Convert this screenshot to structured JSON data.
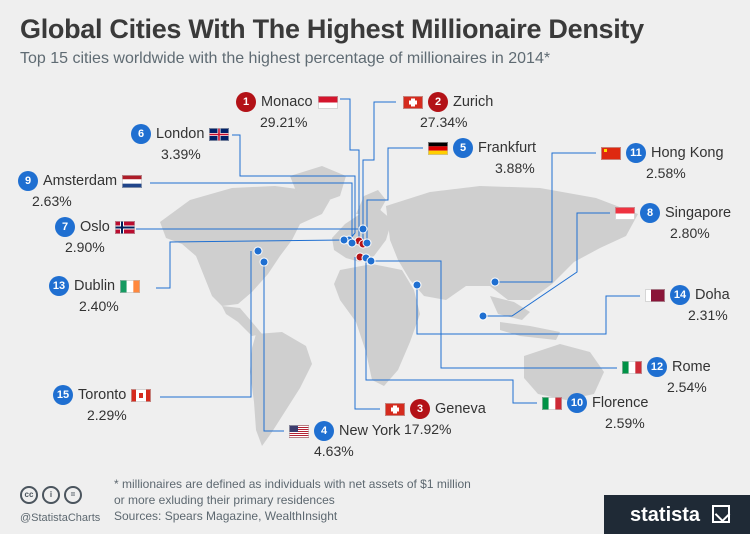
{
  "title": "Global Cities With The Highest Millionaire Density",
  "subtitle": "Top 15 cities worldwide with the highest percentage of millionaires in 2014*",
  "footer": {
    "note_line1": "* millionaires are defined as individuals with net assets of $1 million",
    "note_line2": "or more exluding their primary residences",
    "sources": "Sources: Spears Magazine, WealthInsight",
    "handle": "@StatistaCharts",
    "brand": "statista"
  },
  "icons": [
    "cc-icon",
    "by-icon",
    "nd-icon",
    "statista-logo-icon"
  ],
  "colors": {
    "top3": "#b31217",
    "others": "#1f6fd1",
    "leader": "#1f6fd1",
    "map": "#cfcfcf",
    "background": "#efefef"
  },
  "chart_data": {
    "type": "table",
    "title": "Global Cities With The Highest Millionaire Density",
    "subtitle": "Top 15 cities worldwide with the highest percentage of millionaires in 2014*",
    "unit": "%",
    "cities": [
      {
        "rank": 1,
        "rank_label": "1",
        "name": "Monaco",
        "value": 29.21,
        "label": "29.21%",
        "flag": "monaco"
      },
      {
        "rank": 2,
        "rank_label": "2",
        "name": "Zurich",
        "value": 27.34,
        "label": "27.34%",
        "flag": "switzerland"
      },
      {
        "rank": 3,
        "rank_label": "3",
        "name": "Geneva",
        "value": 17.92,
        "label": "17.92%",
        "flag": "switzerland"
      },
      {
        "rank": 4,
        "rank_label": "4",
        "name": "New York",
        "value": 4.63,
        "label": "4.63%",
        "flag": "usa"
      },
      {
        "rank": 5,
        "rank_label": "5",
        "name": "Frankfurt",
        "value": 3.88,
        "label": "3.88%",
        "flag": "germany"
      },
      {
        "rank": 6,
        "rank_label": "6",
        "name": "London",
        "value": 3.39,
        "label": "3.39%",
        "flag": "uk"
      },
      {
        "rank": 7,
        "rank_label": "7",
        "name": "Oslo",
        "value": 2.9,
        "label": "2.90%",
        "flag": "norway"
      },
      {
        "rank": 8,
        "rank_label": "8",
        "name": "Singapore",
        "value": 2.8,
        "label": "2.80%",
        "flag": "singapore"
      },
      {
        "rank": 9,
        "rank_label": "9",
        "name": "Amsterdam",
        "value": 2.63,
        "label": "2.63%",
        "flag": "netherlands"
      },
      {
        "rank": 10,
        "rank_label": "10",
        "name": "Florence",
        "value": 2.59,
        "label": "2.59%",
        "flag": "italy"
      },
      {
        "rank": 11,
        "rank_label": "11",
        "name": "Hong Kong",
        "value": 2.58,
        "label": "2.58%",
        "flag": "china"
      },
      {
        "rank": 12,
        "rank_label": "12",
        "name": "Rome",
        "value": 2.54,
        "label": "2.54%",
        "flag": "italy"
      },
      {
        "rank": 13,
        "rank_label": "13",
        "name": "Dublin",
        "value": 2.4,
        "label": "2.40%",
        "flag": "ireland"
      },
      {
        "rank": 14,
        "rank_label": "14",
        "name": "Doha",
        "value": 2.31,
        "label": "2.31%",
        "flag": "qatar"
      },
      {
        "rank": 15,
        "rank_label": "15",
        "name": "Toronto",
        "value": 2.29,
        "label": "2.29%",
        "flag": "canada"
      }
    ]
  }
}
